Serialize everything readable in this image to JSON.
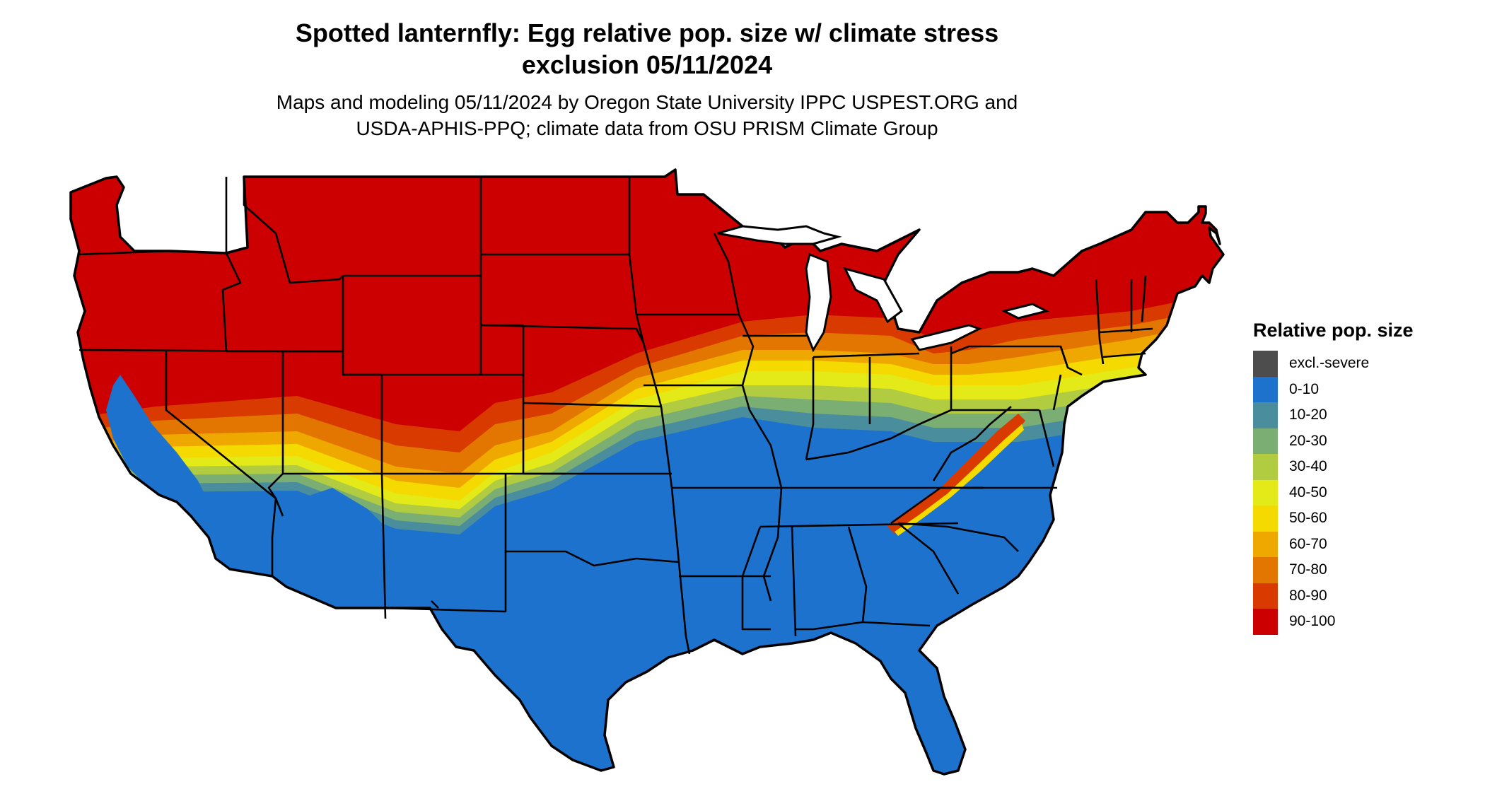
{
  "title_line1": "Spotted lanternfly: Egg relative pop. size w/ climate stress",
  "title_line2": "exclusion 05/11/2024",
  "subtitle_line1": "Maps and modeling 05/11/2024 by Oregon State University IPPC USPEST.ORG and",
  "subtitle_line2": "USDA-APHIS-PPQ; climate data from OSU PRISM Climate Group",
  "legend": {
    "title": "Relative pop. size",
    "items": [
      {
        "label": "excl.-severe",
        "color": "#4d4d4d"
      },
      {
        "label": "0-10",
        "color": "#1c72cc"
      },
      {
        "label": "10-20",
        "color": "#4a8e9e"
      },
      {
        "label": "20-30",
        "color": "#7bae72"
      },
      {
        "label": "30-40",
        "color": "#b2cc42"
      },
      {
        "label": "40-50",
        "color": "#e3ea17"
      },
      {
        "label": "50-60",
        "color": "#f4da00"
      },
      {
        "label": "60-70",
        "color": "#eea800"
      },
      {
        "label": "70-80",
        "color": "#e27600"
      },
      {
        "label": "80-90",
        "color": "#d83a00"
      },
      {
        "label": "90-100",
        "color": "#cc0000"
      }
    ]
  }
}
